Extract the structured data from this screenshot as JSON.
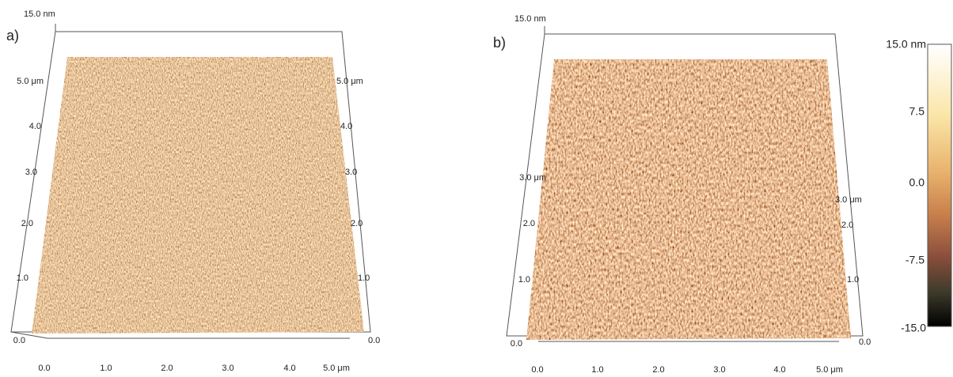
{
  "panel_a": {
    "label": "a)",
    "z_top": "15.0 nm",
    "left_ticks": [
      "5.0 μm",
      "4.0",
      "3.0",
      "2.0",
      "1.0",
      "0.0"
    ],
    "right_ticks": [
      "5.0 μm",
      "4.0",
      "3.0",
      "2.0",
      "1.0",
      "0.0"
    ],
    "bottom_ticks": [
      "0.0",
      "1.0",
      "2.0",
      "3.0",
      "4.0",
      "5.0 μm"
    ]
  },
  "panel_b": {
    "label": "b)",
    "z_top": "15.0 nm",
    "left_ticks": [
      "3.0 μm",
      "2.0",
      "1.0",
      "0.0"
    ],
    "right_ticks": [
      "3.0 μm",
      "2.0",
      "1.0",
      "0.0"
    ],
    "bottom_ticks": [
      "0.0",
      "1.0",
      "2.0",
      "3.0",
      "4.0",
      "5.0 μm"
    ]
  },
  "colorbar": {
    "ticks": [
      "15.0 nm",
      "7.5",
      "0.0",
      "-7.5",
      "-15.0"
    ]
  }
}
